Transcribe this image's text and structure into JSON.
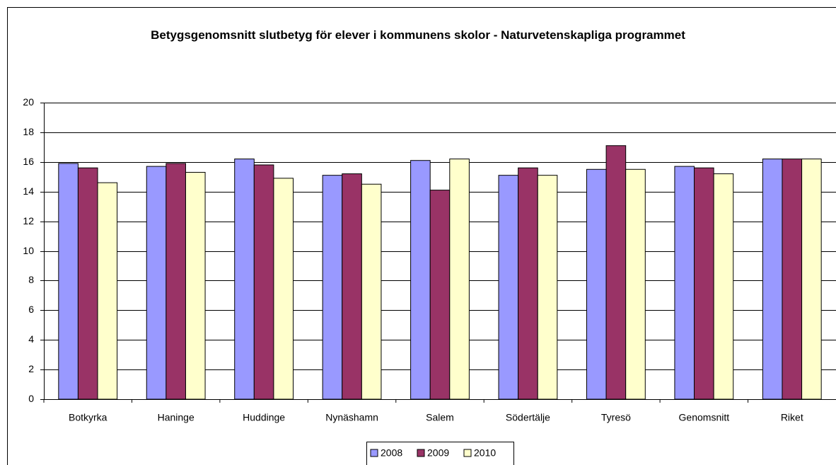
{
  "chart_data": {
    "type": "bar",
    "title": "Betygsgenomsnitt slutbetyg för elever i kommunens skolor - Naturvetenskapliga programmet",
    "categories": [
      "Botkyrka",
      "Haninge",
      "Huddinge",
      "Nynäshamn",
      "Salem",
      "Södertälje",
      "Tyresö",
      "Genomsnitt",
      "Riket"
    ],
    "series": [
      {
        "name": "2008",
        "color": "#9999ff",
        "values": [
          15.9,
          15.7,
          16.2,
          15.1,
          16.1,
          15.1,
          15.5,
          15.7,
          16.2
        ]
      },
      {
        "name": "2009",
        "color": "#993366",
        "values": [
          15.6,
          15.9,
          15.8,
          15.2,
          14.1,
          15.6,
          17.1,
          15.6,
          16.2
        ]
      },
      {
        "name": "2010",
        "color": "#ffffcc",
        "values": [
          14.6,
          15.3,
          14.9,
          14.5,
          16.2,
          15.1,
          15.5,
          15.2,
          16.2
        ]
      }
    ],
    "ylim": [
      0,
      20
    ],
    "yticks": [
      0,
      2,
      4,
      6,
      8,
      10,
      12,
      14,
      16,
      18,
      20
    ],
    "grid": true,
    "legend": "bottom"
  }
}
